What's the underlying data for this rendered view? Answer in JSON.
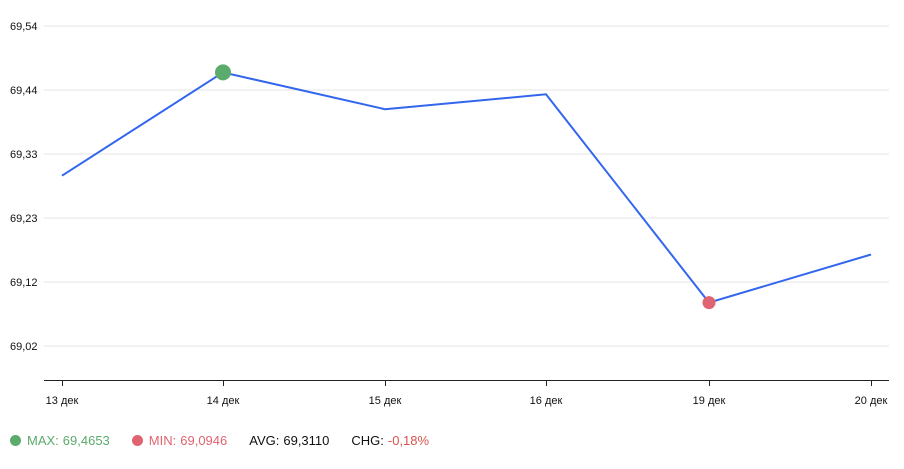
{
  "colors": {
    "line": "#3366ee",
    "max": "#5aab6c",
    "min": "#e06470",
    "grid": "#e6e6e6",
    "axis": "#222222",
    "text": "#111111",
    "chg_value": "#d9534f"
  },
  "chart_data": {
    "type": "line",
    "categories": [
      "13 дек",
      "14 дек",
      "15 дек",
      "16 дек",
      "19 дек",
      "20 дек"
    ],
    "series": [
      {
        "values": [
          69.299,
          69.4653,
          69.406,
          69.43,
          69.0946,
          69.172
        ]
      }
    ],
    "y_ticks": [
      "69,54",
      "69,44",
      "69,33",
      "69,23",
      "69,12",
      "69,02"
    ],
    "ylim": [
      68.97,
      69.54
    ],
    "grid": true,
    "max_point": {
      "category": "14 дек",
      "value": 69.4653
    },
    "min_point": {
      "category": "19 дек",
      "value": 69.0946
    }
  },
  "legend": {
    "max": {
      "label": "MAX:",
      "value": "69,4653"
    },
    "min": {
      "label": "MIN:",
      "value": "69,0946"
    },
    "avg": {
      "label": "AVG:",
      "value": "69,3110"
    },
    "chg": {
      "label": "CHG:",
      "value": "-0,18%"
    }
  }
}
